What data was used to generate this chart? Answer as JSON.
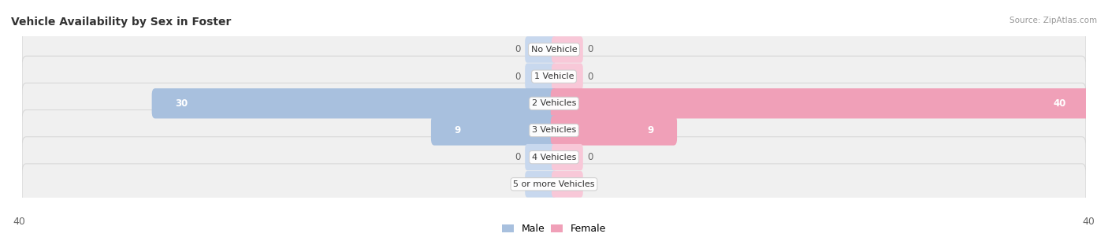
{
  "title": "Vehicle Availability by Sex in Foster",
  "source": "Source: ZipAtlas.com",
  "categories": [
    "No Vehicle",
    "1 Vehicle",
    "2 Vehicles",
    "3 Vehicles",
    "4 Vehicles",
    "5 or more Vehicles"
  ],
  "male_values": [
    0,
    0,
    30,
    9,
    0,
    0
  ],
  "female_values": [
    0,
    0,
    40,
    9,
    0,
    0
  ],
  "male_color": "#a8c0de",
  "female_color": "#f0a0b8",
  "male_stub_color": "#c8d8ee",
  "female_stub_color": "#f8c8d8",
  "row_color": "#f0f0f0",
  "row_edge_color": "#d8d8d8",
  "max_value": 40,
  "stub_value": 2,
  "label_color": "#666666",
  "title_color": "#333333",
  "source_color": "#999999",
  "figwidth": 14.06,
  "figheight": 3.06,
  "dpi": 100
}
